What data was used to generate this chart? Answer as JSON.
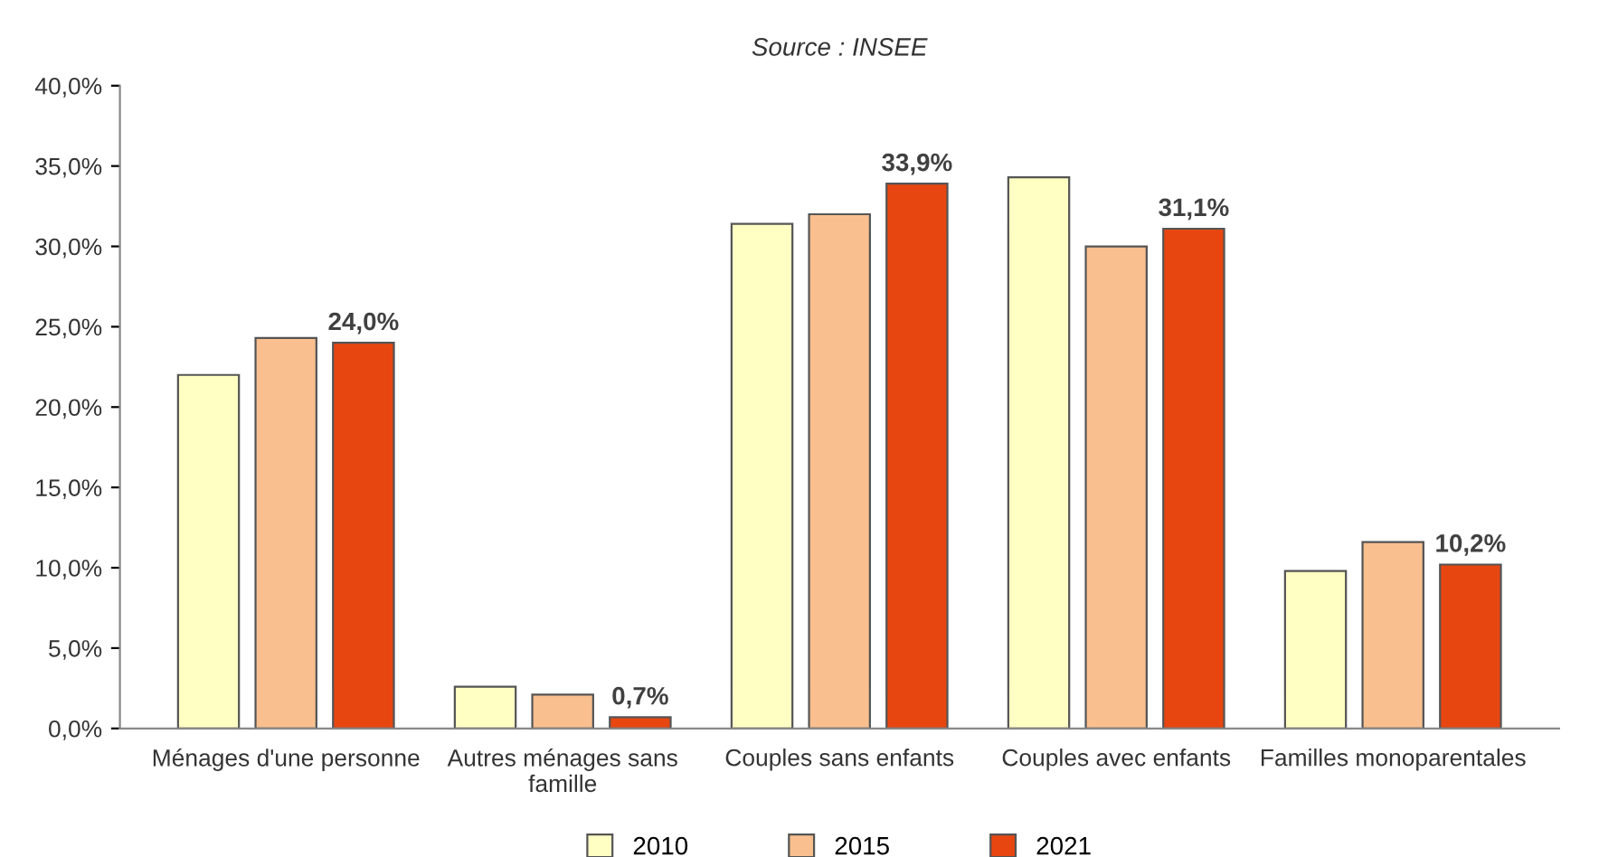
{
  "chart_data": {
    "type": "bar",
    "title": "Source : INSEE",
    "categories": [
      "Ménages d'une personne",
      "Autres ménages sans\nfamille",
      "Couples sans enfants",
      "Couples avec enfants",
      "Familles monoparentales"
    ],
    "series": [
      {
        "name": "2010",
        "color": "#ffffc4",
        "values": [
          22.0,
          2.6,
          31.4,
          34.3,
          9.8
        ]
      },
      {
        "name": "2015",
        "color": "#f9bf8f",
        "values": [
          24.3,
          2.1,
          32.0,
          30.0,
          11.6
        ]
      },
      {
        "name": "2021",
        "color": "#e84610",
        "values": [
          24.0,
          0.7,
          33.9,
          31.1,
          10.2
        ],
        "value_labels": [
          "24,0%",
          "0,7%",
          "33,9%",
          "31,1%",
          "10,2%"
        ]
      }
    ],
    "ylim": [
      0,
      40
    ],
    "yticks": [
      {
        "value": 0,
        "label": "0,0%"
      },
      {
        "value": 5,
        "label": "5,0%"
      },
      {
        "value": 10,
        "label": "10,0%"
      },
      {
        "value": 15,
        "label": "15,0%"
      },
      {
        "value": 20,
        "label": "20,0%"
      },
      {
        "value": 25,
        "label": "25,0%"
      },
      {
        "value": 30,
        "label": "30,0%"
      },
      {
        "value": 35,
        "label": "35,0%"
      },
      {
        "value": 40,
        "label": "40,0%"
      }
    ],
    "grid": false,
    "legend": "bottom"
  }
}
